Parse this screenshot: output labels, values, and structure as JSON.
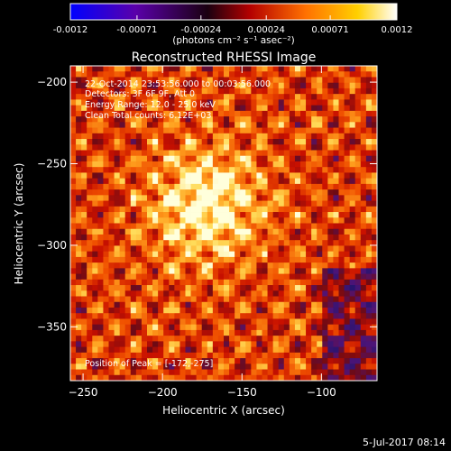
{
  "colors": {
    "background": "#000000",
    "foreground": "#ffffff",
    "colorbar_stops": [
      "#0000ff",
      "#5a00aa",
      "#000000",
      "#b40000",
      "#ff7000",
      "#ffd000",
      "#ffffff"
    ],
    "image_palette": [
      "#3a1a8a",
      "#6a1010",
      "#c81000",
      "#f05000",
      "#ffa020",
      "#ffe060"
    ]
  },
  "colorbar": {
    "ticks": [
      "-0.0012",
      "-0.00071",
      "-0.00024",
      "0.00024",
      "0.00071",
      "0.0012"
    ],
    "tick_values": [
      -0.0012,
      -0.00071,
      -0.00024,
      0.00024,
      0.00071,
      0.0012
    ],
    "range": [
      -0.0012,
      0.0012
    ],
    "units": "(photons cm⁻² s⁻¹ asec⁻²)"
  },
  "chart_data": {
    "type": "heatmap",
    "title": "Reconstructed RHESSI Image",
    "xlabel": "Heliocentric X (arcsec)",
    "ylabel": "Heliocentric Y (arcsec)",
    "xlim": [
      -258,
      -65
    ],
    "ylim": [
      -383,
      -190
    ],
    "xticks": [
      -250,
      -200,
      -150,
      -100
    ],
    "xtick_labels": [
      "−250",
      "−200",
      "−150",
      "−100"
    ],
    "yticks": [
      -200,
      -250,
      -300,
      -350
    ],
    "ytick_labels": [
      "−200",
      "−250",
      "−300",
      "−350"
    ],
    "annotations": {
      "time_range": "22-Oct-2014 23:53:56.000 to 00:03:56.000",
      "detectors": "Detectors: 3F 6F 9F, Att 0",
      "energy": "Energy Range: 12.0 - 25.0 keV",
      "method": "Clean     Total counts: 6.12E+03",
      "peak": "Position of Peak = [-172,-275]"
    },
    "peak_position": [
      -172,
      -275
    ]
  },
  "footer": {
    "date": "5-Jul-2017 08:14"
  }
}
